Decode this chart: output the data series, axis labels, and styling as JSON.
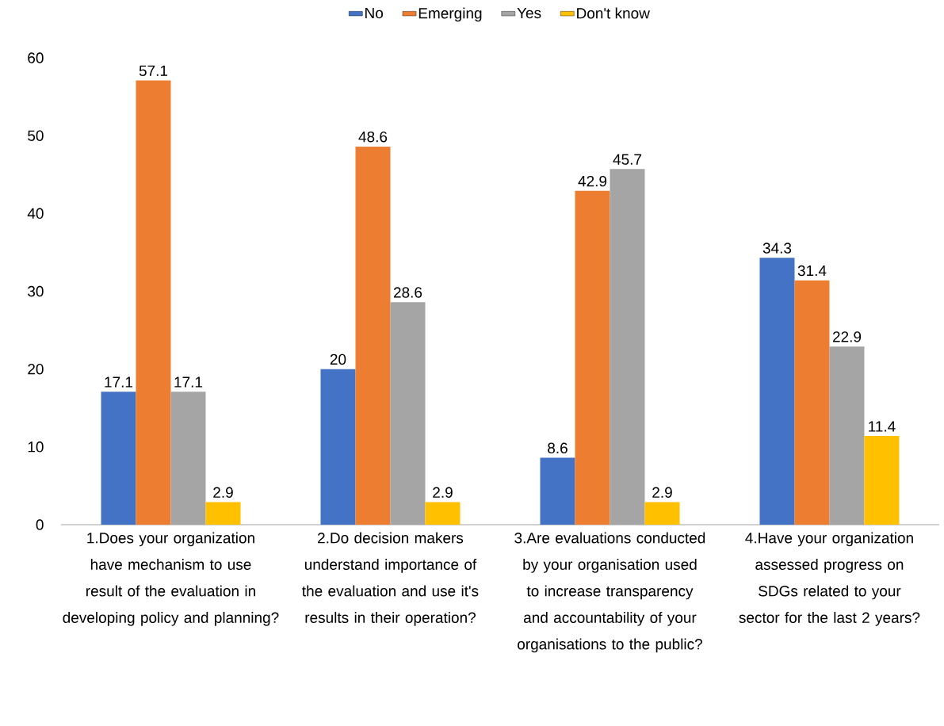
{
  "chart_data": {
    "type": "bar",
    "categories": [
      "1.Does your organization have mechanism to use result of the evaluation in developing policy and planning?",
      "2.Do decision makers understand importance of the evaluation and use it's results in their operation?",
      "3.Are evaluations conducted by your organisation used to increase transparency and accountability of your organisations to the public?",
      "4.Have your organization assessed progress on SDGs related to your sector for the last 2 years?"
    ],
    "series": [
      {
        "name": "No",
        "color": "#4472c4",
        "values": [
          17.1,
          20,
          8.6,
          34.3
        ]
      },
      {
        "name": "Emerging",
        "color": "#ed7d31",
        "values": [
          57.1,
          48.6,
          42.9,
          31.4
        ]
      },
      {
        "name": "Yes",
        "color": "#a5a5a5",
        "values": [
          17.1,
          28.6,
          45.7,
          22.9
        ]
      },
      {
        "name": "Don't know",
        "color": "#ffc000",
        "values": [
          2.9,
          2.9,
          2.9,
          11.4
        ]
      }
    ],
    "ylim": [
      0,
      60
    ],
    "yticks": [
      0,
      10,
      20,
      30,
      40,
      50,
      60
    ],
    "data_labels": true,
    "legend": "top"
  }
}
